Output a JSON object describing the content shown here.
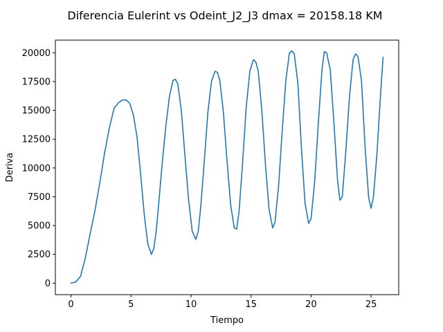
{
  "chart_data": {
    "type": "line",
    "title": "Diferencia Eulerint vs Odeint_J2_J3 dmax = 20158.18 KM",
    "xlabel": "Tiempo",
    "ylabel": "Deriva",
    "xlim": [
      -1.3,
      27.3
    ],
    "ylim": [
      -1000,
      21100
    ],
    "xticks": [
      0,
      5,
      10,
      15,
      20,
      25
    ],
    "xtick_labels": [
      "0",
      "5",
      "10",
      "15",
      "20",
      "25"
    ],
    "yticks": [
      0,
      2500,
      5000,
      7500,
      10000,
      12500,
      15000,
      17500,
      20000
    ],
    "ytick_labels": [
      "0",
      "2500",
      "5000",
      "7500",
      "10000",
      "12500",
      "15000",
      "17500",
      "20000"
    ],
    "grid": false,
    "line_color": "#1f77b4",
    "series": [
      {
        "x": [
          0,
          0.4,
          0.8,
          1.2,
          1.6,
          2.0,
          2.4,
          2.8,
          3.2,
          3.6,
          4.0,
          4.3,
          4.6,
          4.9,
          5.2,
          5.5,
          5.8,
          6.1,
          6.4,
          6.7,
          6.9,
          7.1,
          7.3,
          7.6,
          7.9,
          8.2,
          8.5,
          8.7,
          8.9,
          9.2,
          9.5,
          9.8,
          10.1,
          10.4,
          10.6,
          10.8,
          11.1,
          11.4,
          11.7,
          12.0,
          12.2,
          12.4,
          12.7,
          13.0,
          13.3,
          13.6,
          13.8,
          14.0,
          14.3,
          14.6,
          14.9,
          15.2,
          15.4,
          15.6,
          15.9,
          16.2,
          16.5,
          16.8,
          17.0,
          17.3,
          17.6,
          17.9,
          18.2,
          18.4,
          18.6,
          18.9,
          19.2,
          19.5,
          19.8,
          20.0,
          20.3,
          20.6,
          20.9,
          21.1,
          21.3,
          21.6,
          21.9,
          22.2,
          22.4,
          22.6,
          22.9,
          23.2,
          23.5,
          23.7,
          23.9,
          24.2,
          24.5,
          24.8,
          25.0,
          25.2,
          25.5,
          25.8,
          26.0
        ],
        "y": [
          0,
          100,
          600,
          2200,
          4300,
          6300,
          8700,
          11300,
          13500,
          15200,
          15700,
          15900,
          15900,
          15600,
          14600,
          12700,
          9500,
          6000,
          3400,
          2500,
          3000,
          4500,
          6800,
          10400,
          13600,
          16200,
          17600,
          17700,
          17300,
          14900,
          11000,
          7200,
          4500,
          3800,
          4500,
          6500,
          10500,
          14800,
          17500,
          18400,
          18300,
          17600,
          14800,
          10600,
          6800,
          4800,
          4700,
          6200,
          10500,
          15300,
          18400,
          19400,
          19200,
          18400,
          15000,
          10300,
          6400,
          4800,
          5300,
          8500,
          13300,
          17600,
          20000,
          20158,
          19900,
          17400,
          11700,
          6900,
          5200,
          5600,
          8800,
          13800,
          18400,
          20100,
          20000,
          18500,
          14000,
          9000,
          7200,
          7500,
          11500,
          16200,
          19400,
          19900,
          19700,
          17600,
          11800,
          7400,
          6500,
          7500,
          11400,
          16600,
          19600
        ]
      }
    ]
  }
}
